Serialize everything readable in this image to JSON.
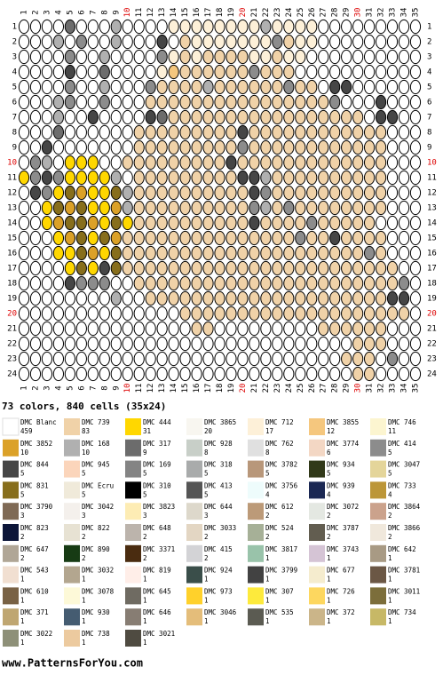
{
  "header": {
    "summary": "73 colors, 840 cells (35x24)"
  },
  "grid": {
    "columns": [
      "1",
      "2",
      "3",
      "4",
      "5",
      "6",
      "7",
      "8",
      "9",
      "10",
      "11",
      "12",
      "13",
      "14",
      "15",
      "16",
      "17",
      "18",
      "19",
      "20",
      "21",
      "22",
      "23",
      "24",
      "25",
      "26",
      "27",
      "28",
      "29",
      "30",
      "31",
      "32",
      "33",
      "34",
      "35"
    ],
    "rows": [
      "1",
      "2",
      "3",
      "4",
      "5",
      "6",
      "7",
      "8",
      "9",
      "10",
      "11",
      "12",
      "13",
      "14",
      "15",
      "16",
      "17",
      "18",
      "19",
      "20",
      "21",
      "22",
      "23",
      "24"
    ]
  },
  "legend": [
    {
      "name": "DMC Blanc",
      "count": 459,
      "color": "#ffffff"
    },
    {
      "name": "DMC 739",
      "count": 83,
      "color": "#f0d2a8"
    },
    {
      "name": "DMC 444",
      "count": 31,
      "color": "#ffd700"
    },
    {
      "name": "DMC 3865",
      "count": 20,
      "color": "#f8f6f0"
    },
    {
      "name": "DMC 712",
      "count": 17,
      "color": "#fdf0d8"
    },
    {
      "name": "DMC 3855",
      "count": 12,
      "color": "#f5c77e"
    },
    {
      "name": "DMC 746",
      "count": 11,
      "color": "#fcf5d0"
    },
    {
      "name": "DMC 3852",
      "count": 10,
      "color": "#dba128"
    },
    {
      "name": "DMC 168",
      "count": 10,
      "color": "#b0b0b0"
    },
    {
      "name": "DMC 317",
      "count": 9,
      "color": "#6c6c6c"
    },
    {
      "name": "DMC 928",
      "count": 8,
      "color": "#c8cfc8"
    },
    {
      "name": "DMC 762",
      "count": 8,
      "color": "#e0e0e0"
    },
    {
      "name": "DMC 3774",
      "count": 6,
      "color": "#f3d7c4"
    },
    {
      "name": "DMC 414",
      "count": 5,
      "color": "#8c8c8c"
    },
    {
      "name": "DMC 844",
      "count": 5,
      "color": "#464646"
    },
    {
      "name": "DMC 945",
      "count": 5,
      "color": "#fbd5bb"
    },
    {
      "name": "DMC 169",
      "count": 5,
      "color": "#848484"
    },
    {
      "name": "DMC 318",
      "count": 5,
      "color": "#a9abab"
    },
    {
      "name": "DMC 3782",
      "count": 5,
      "color": "#b8977a"
    },
    {
      "name": "DMC 934",
      "count": 5,
      "color": "#313919"
    },
    {
      "name": "DMC 3047",
      "count": 5,
      "color": "#e4d59a"
    },
    {
      "name": "DMC 831",
      "count": 5,
      "color": "#876e1c"
    },
    {
      "name": "DMC Ecru",
      "count": 5,
      "color": "#f0eada"
    },
    {
      "name": "DMC 310",
      "count": 5,
      "color": "#000000"
    },
    {
      "name": "DMC 413",
      "count": 5,
      "color": "#555555"
    },
    {
      "name": "DMC 3756",
      "count": 4,
      "color": "#eefcfc"
    },
    {
      "name": "DMC 939",
      "count": 4,
      "color": "#1b2853"
    },
    {
      "name": "DMC 733",
      "count": 4,
      "color": "#bc9638"
    },
    {
      "name": "DMC 3790",
      "count": 3,
      "color": "#7f6a55"
    },
    {
      "name": "DMC 3042",
      "count": 3,
      "color": "#f4f0ec"
    },
    {
      "name": "DMC 3823",
      "count": 3,
      "color": "#fdecb4"
    },
    {
      "name": "DMC 644",
      "count": 3,
      "color": "#ddd8cb"
    },
    {
      "name": "DMC 612",
      "count": 2,
      "color": "#bc9a78"
    },
    {
      "name": "DMC 3072",
      "count": 2,
      "color": "#e4e8e2"
    },
    {
      "name": "DMC 3864",
      "count": 2,
      "color": "#cba28c"
    },
    {
      "name": "DMC 823",
      "count": 2,
      "color": "#0c1538"
    },
    {
      "name": "DMC 822",
      "count": 2,
      "color": "#e7e2d3"
    },
    {
      "name": "DMC 648",
      "count": 2,
      "color": "#bcb4ac"
    },
    {
      "name": "DMC 3033",
      "count": 2,
      "color": "#e3d6c3"
    },
    {
      "name": "DMC 524",
      "count": 2,
      "color": "#a6b097"
    },
    {
      "name": "DMC 3787",
      "count": 2,
      "color": "#625d50"
    },
    {
      "name": "DMC 3866",
      "count": 2,
      "color": "#f0e8dc"
    },
    {
      "name": "DMC 647",
      "count": 2,
      "color": "#b0a696"
    },
    {
      "name": "DMC 890",
      "count": 2,
      "color": "#173b14"
    },
    {
      "name": "DMC 3371",
      "count": 2,
      "color": "#4a2c10"
    },
    {
      "name": "DMC 415",
      "count": 2,
      "color": "#d3d3d6"
    },
    {
      "name": "DMC 3817",
      "count": 1,
      "color": "#99c3aa"
    },
    {
      "name": "DMC 3743",
      "count": 1,
      "color": "#d5c4d5"
    },
    {
      "name": "DMC 642",
      "count": 1,
      "color": "#a89a84"
    },
    {
      "name": "DMC 543",
      "count": 1,
      "color": "#f1dfd1"
    },
    {
      "name": "DMC 3032",
      "count": 1,
      "color": "#b3a68f"
    },
    {
      "name": "DMC 819",
      "count": 1,
      "color": "#ffeee8"
    },
    {
      "name": "DMC 924",
      "count": 1,
      "color": "#3a4e4a"
    },
    {
      "name": "DMC 3799",
      "count": 1,
      "color": "#424242"
    },
    {
      "name": "DMC 677",
      "count": 1,
      "color": "#f5ecce"
    },
    {
      "name": "DMC 3781",
      "count": 1,
      "color": "#6b5745"
    },
    {
      "name": "DMC 610",
      "count": 1,
      "color": "#796245"
    },
    {
      "name": "DMC 3078",
      "count": 1,
      "color": "#fdf9d8"
    },
    {
      "name": "DMC 645",
      "count": 1,
      "color": "#6f6b62"
    },
    {
      "name": "DMC 973",
      "count": 1,
      "color": "#ffd12b"
    },
    {
      "name": "DMC 307",
      "count": 1,
      "color": "#fdea3c"
    },
    {
      "name": "DMC 726",
      "count": 1,
      "color": "#fdd75f"
    },
    {
      "name": "DMC 3011",
      "count": 1,
      "color": "#7c6e3b"
    },
    {
      "name": "DMC 371",
      "count": 1,
      "color": "#bfa671"
    },
    {
      "name": "DMC 930",
      "count": 1,
      "color": "#455c71"
    },
    {
      "name": "DMC 646",
      "count": 1,
      "color": "#877d73"
    },
    {
      "name": "DMC 3046",
      "count": 1,
      "color": "#e4bd7a"
    },
    {
      "name": "DMC 535",
      "count": 1,
      "color": "#5b5b52"
    },
    {
      "name": "DMC 372",
      "count": 1,
      "color": "#cbb589"
    },
    {
      "name": "DMC 734",
      "count": 1,
      "color": "#c7b866"
    },
    {
      "name": "DMC 3022",
      "count": 1,
      "color": "#8e9078"
    },
    {
      "name": "DMC 738",
      "count": 1,
      "color": "#ecca9f"
    },
    {
      "name": "DMC 3021",
      "count": 1,
      "color": "#4f4b41"
    }
  ],
  "footer": "www.PatternsForYou.com"
}
